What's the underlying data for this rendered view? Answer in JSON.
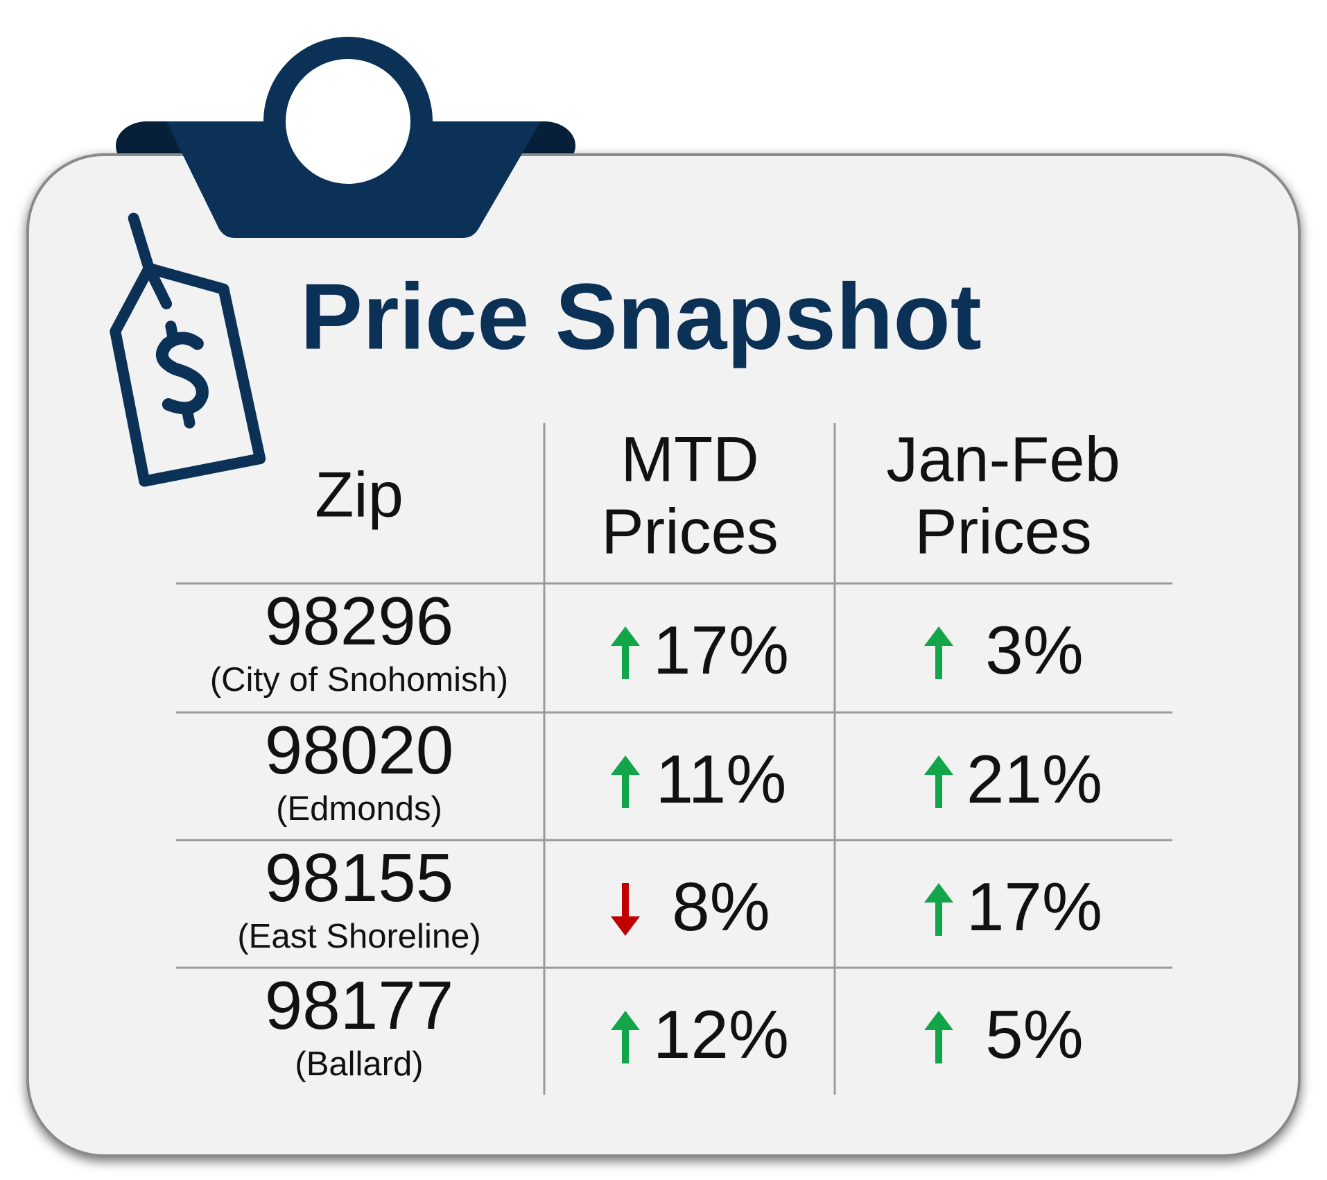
{
  "header": {
    "title": "Price Snapshot"
  },
  "table": {
    "columns": [
      [
        "Zip"
      ],
      [
        "MTD",
        "Prices"
      ],
      [
        "Jan-Feb",
        "Prices"
      ]
    ],
    "rows": [
      {
        "zip": "98296",
        "area": "(City of Snohomish)",
        "mtd": {
          "text": "17%",
          "trend": "up"
        },
        "janfeb": {
          "text": "3%",
          "trend": "up"
        }
      },
      {
        "zip": "98020",
        "area": "(Edmonds)",
        "mtd": {
          "text": "11%",
          "trend": "up"
        },
        "janfeb": {
          "text": "21%",
          "trend": "up"
        }
      },
      {
        "zip": "98155",
        "area": "(East Shoreline)",
        "mtd": {
          "text": "8%",
          "trend": "down"
        },
        "janfeb": {
          "text": "17%",
          "trend": "up"
        }
      },
      {
        "zip": "98177",
        "area": "(Ballard)",
        "mtd": {
          "text": "12%",
          "trend": "up"
        },
        "janfeb": {
          "text": "5%",
          "trend": "up"
        }
      }
    ],
    "trend_colors": {
      "up": "#12a54a",
      "down": "#c00000"
    }
  }
}
